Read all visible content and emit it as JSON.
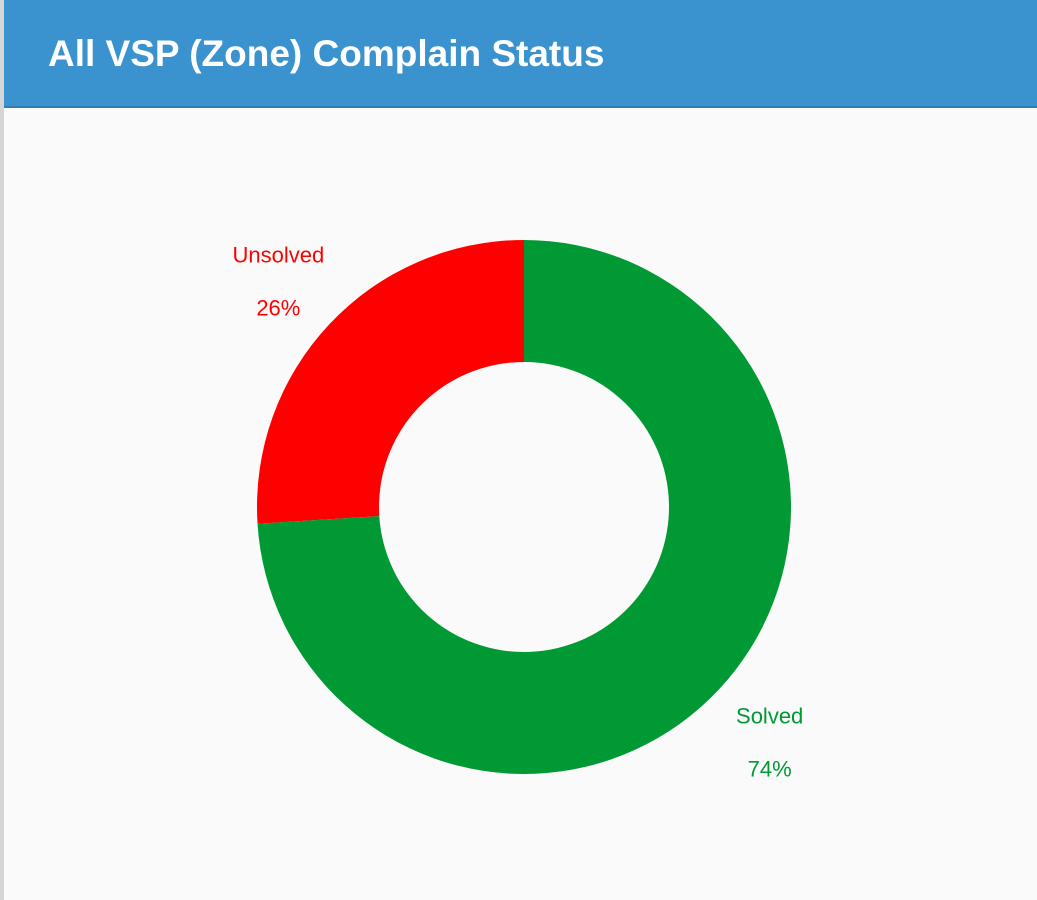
{
  "panel": {
    "title": "All VSP (Zone) Complain Status"
  },
  "colors": {
    "header": "#3a93cf",
    "solved": "#009933",
    "unsolved": "#ff0000"
  },
  "chart_data": {
    "type": "pie",
    "donut": true,
    "title": "",
    "slices": [
      {
        "label": "Unsolved",
        "value": 26,
        "percent_label": "26%",
        "color": "#ff0000"
      },
      {
        "label": "Solved",
        "value": 74,
        "percent_label": "74%",
        "color": "#009933"
      }
    ],
    "start_angle_deg": 0,
    "direction": "counterclockwise",
    "legend": "none",
    "data_labels": "outside"
  }
}
